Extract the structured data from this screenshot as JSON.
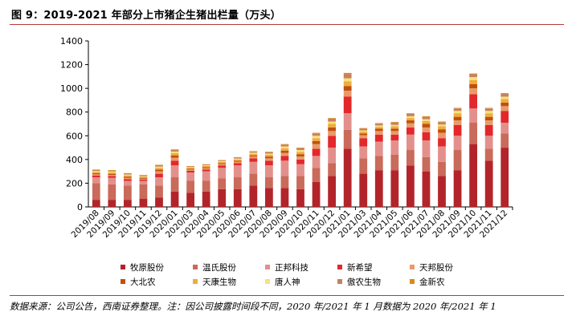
{
  "title": "图 9：2019-2021 年部分上市猪企生猪出栏量（万头）",
  "source": "数据来源：公司公告，西南证券整理。注：因公司披露时间段不同，2020 年/2021 年 1 月数据为 2020 年/2021 年 1",
  "chart_data": {
    "type": "bar",
    "stacked": true,
    "title": "",
    "xlabel": "",
    "ylabel": "",
    "ylim": [
      0,
      1400
    ],
    "yticks": [
      0,
      200,
      400,
      600,
      800,
      1000,
      1200,
      1400
    ],
    "grid": false,
    "legend_position": "bottom",
    "categories": [
      "2019/08",
      "2019/09",
      "2019/10",
      "2019/11",
      "2019/12",
      "2020/01",
      "2020/03",
      "2020/04",
      "2020/05",
      "2020/06",
      "2020/07",
      "2020/08",
      "2020/09",
      "2020/10",
      "2020/11",
      "2020/12",
      "2021/01",
      "2021/03",
      "2021/04",
      "2021/05",
      "2021/06",
      "2021/07",
      "2021/08",
      "2021/09",
      "2021/10",
      "2021/11",
      "2021/12"
    ],
    "series": [
      {
        "name": "牧原股份",
        "color": "#b3242a",
        "values": [
          60,
          60,
          60,
          70,
          80,
          130,
          120,
          130,
          150,
          150,
          180,
          160,
          160,
          150,
          210,
          260,
          490,
          280,
          310,
          310,
          350,
          300,
          260,
          310,
          530,
          390,
          500
        ]
      },
      {
        "name": "温氏股份",
        "color": "#c96a5a",
        "values": [
          140,
          130,
          120,
          120,
          100,
          120,
          100,
          90,
          90,
          100,
          100,
          90,
          100,
          110,
          120,
          110,
          160,
          130,
          120,
          130,
          130,
          120,
          120,
          170,
          180,
          100,
          120
        ]
      },
      {
        "name": "正邦科技",
        "color": "#e3908c",
        "values": [
          50,
          55,
          40,
          30,
          70,
          100,
          70,
          80,
          90,
          100,
          100,
          100,
          130,
          100,
          100,
          130,
          140,
          100,
          120,
          120,
          130,
          140,
          130,
          120,
          120,
          110,
          90
        ]
      },
      {
        "name": "新希望",
        "color": "#e3282b",
        "values": [
          15,
          15,
          15,
          10,
          30,
          40,
          15,
          15,
          20,
          20,
          30,
          40,
          40,
          40,
          60,
          100,
          140,
          70,
          60,
          50,
          60,
          70,
          70,
          90,
          120,
          90,
          100
        ]
      },
      {
        "name": "天邦股份",
        "color": "#e99a6a",
        "values": [
          10,
          10,
          10,
          8,
          20,
          25,
          10,
          12,
          12,
          12,
          15,
          20,
          25,
          25,
          40,
          40,
          50,
          25,
          30,
          30,
          35,
          40,
          45,
          40,
          50,
          40,
          40
        ]
      },
      {
        "name": "大北农",
        "color": "#c0500d",
        "values": [
          10,
          10,
          10,
          8,
          15,
          20,
          8,
          8,
          8,
          8,
          10,
          15,
          20,
          20,
          25,
          30,
          40,
          15,
          20,
          20,
          25,
          30,
          30,
          30,
          35,
          30,
          30
        ]
      },
      {
        "name": "天康生物",
        "color": "#f0ad3a",
        "values": [
          10,
          10,
          10,
          8,
          15,
          20,
          8,
          10,
          10,
          10,
          12,
          15,
          20,
          20,
          25,
          30,
          40,
          15,
          15,
          20,
          20,
          25,
          25,
          30,
          35,
          30,
          30
        ]
      },
      {
        "name": "唐人神",
        "color": "#f7df85",
        "values": [
          8,
          8,
          8,
          6,
          10,
          12,
          6,
          6,
          6,
          8,
          10,
          10,
          15,
          15,
          20,
          20,
          25,
          10,
          12,
          12,
          15,
          15,
          15,
          20,
          25,
          20,
          20
        ]
      },
      {
        "name": "傲农生物",
        "color": "#c78060",
        "values": [
          5,
          5,
          5,
          5,
          8,
          10,
          4,
          5,
          5,
          6,
          8,
          10,
          15,
          15,
          20,
          25,
          35,
          15,
          15,
          20,
          20,
          20,
          20,
          20,
          25,
          20,
          25
        ]
      },
      {
        "name": "金新农",
        "color": "#d98a1a",
        "values": [
          7,
          7,
          7,
          5,
          7,
          8,
          4,
          4,
          4,
          6,
          5,
          5,
          5,
          5,
          5,
          5,
          10,
          5,
          5,
          5,
          5,
          5,
          5,
          5,
          5,
          5,
          5
        ]
      }
    ]
  }
}
